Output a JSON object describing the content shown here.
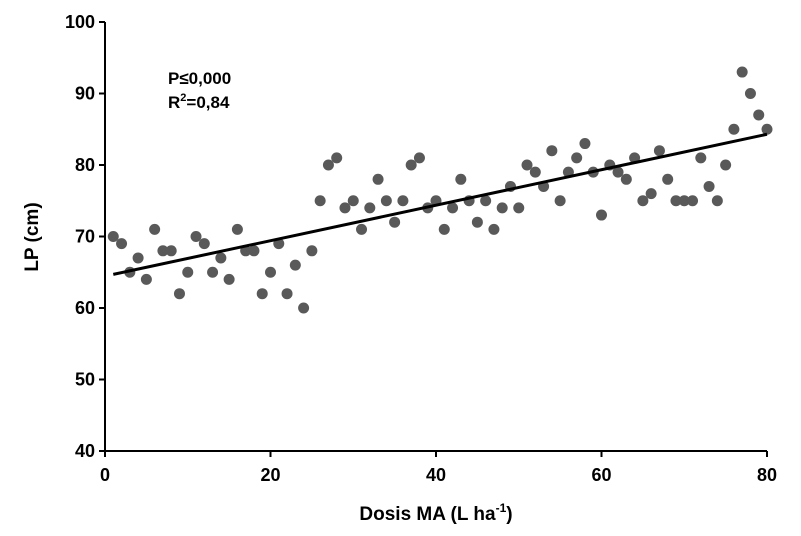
{
  "chart_data": {
    "type": "scatter",
    "xlabel": "Dosis MA (L ha",
    "xlabel_sup": "-1",
    "xlabel_end": ")",
    "ylabel": "LP (cm)",
    "xlim": [
      0,
      80
    ],
    "ylim": [
      40,
      100
    ],
    "xticks": [
      0,
      20,
      40,
      60,
      80
    ],
    "yticks": [
      40,
      50,
      60,
      70,
      80,
      90,
      100
    ],
    "grid": false,
    "legend": "none",
    "annotations": {
      "p_value": "P≤0,000",
      "r2_prefix": "R",
      "r2_sup": "2",
      "r2_value": "=0,84"
    },
    "point_color": "#595959",
    "line_color": "#000000",
    "trendline": {
      "x": [
        1,
        80
      ],
      "y": [
        64.7,
        84.3
      ]
    },
    "series": [
      {
        "x": [
          1,
          2,
          3,
          4,
          5,
          6,
          7,
          8,
          9,
          10,
          11,
          12,
          13,
          14,
          15,
          16,
          17,
          18,
          19,
          20,
          21,
          22,
          23,
          24,
          25,
          26,
          27,
          28,
          29,
          30,
          31,
          32,
          33,
          34,
          35,
          36,
          37,
          38,
          39,
          40,
          41,
          42,
          43,
          44,
          45,
          46,
          47,
          48,
          49,
          50,
          51,
          52,
          53,
          54,
          55,
          56,
          57,
          58,
          59,
          60,
          61,
          62,
          63,
          64,
          65,
          66,
          67,
          68,
          69,
          70,
          71,
          72,
          73,
          74,
          75,
          76,
          77,
          78,
          79,
          80
        ],
        "y": [
          70,
          69,
          65,
          67,
          64,
          71,
          68,
          68,
          62,
          65,
          70,
          69,
          65,
          67,
          64,
          71,
          68,
          68,
          62,
          65,
          69,
          62,
          66,
          60,
          68,
          75,
          80,
          81,
          74,
          75,
          71,
          74,
          78,
          75,
          72,
          75,
          80,
          81,
          74,
          75,
          71,
          74,
          78,
          75,
          72,
          75,
          71,
          74,
          77,
          74,
          80,
          79,
          77,
          82,
          75,
          79,
          81,
          83,
          79,
          73,
          80,
          79,
          78,
          81,
          75,
          76,
          82,
          78,
          75,
          75,
          75,
          81,
          77,
          75,
          80,
          85,
          93,
          90,
          87,
          85
        ]
      }
    ]
  }
}
